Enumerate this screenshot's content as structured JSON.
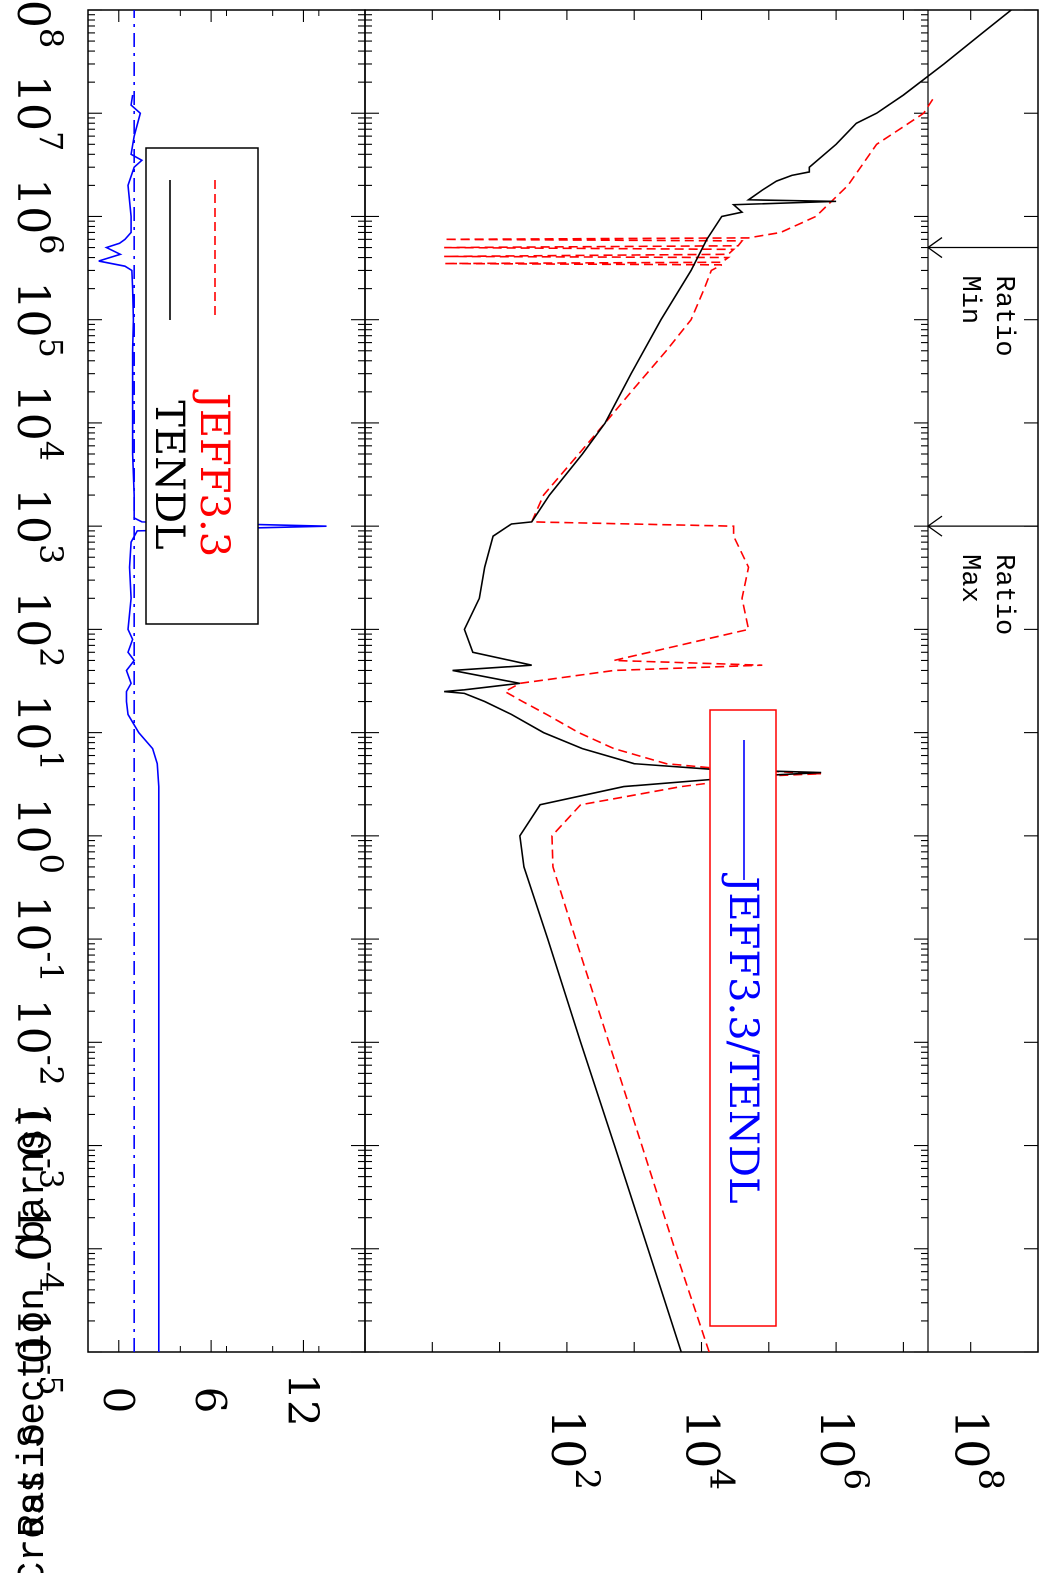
{
  "chart_data": [
    {
      "type": "line",
      "title": "",
      "xlabel": "",
      "ylabel": "Cross Section (barns)",
      "x_scale": "log",
      "y_scale": "log",
      "xlim": [
        1e-05,
        100000000.0
      ],
      "ylim": [
        0.1,
        1000000000.0
      ],
      "x_tick_labels": [
        "10^-5",
        "10^-4",
        "10^-3",
        "10^-2",
        "10^-1",
        "10^0",
        "10^1",
        "10^2",
        "10^3",
        "10^4",
        "10^5",
        "10^6",
        "10^7",
        "10^8"
      ],
      "x_tick_values": [
        1e-05,
        0.0001,
        0.001,
        0.01,
        0.1,
        1,
        10,
        100,
        1000,
        10000.0,
        100000.0,
        1000000.0,
        10000000.0,
        100000000.0
      ],
      "y_tick_labels": [
        "10^2",
        "10^4",
        "10^6",
        "10^8"
      ],
      "y_tick_values": [
        100,
        10000.0,
        1000000.0,
        100000000.0
      ],
      "legend": {
        "placement": "top-left",
        "entries": [
          {
            "label": "TENDL",
            "color": "#000000",
            "style": "solid"
          },
          {
            "label": "JEFF3.3",
            "color": "#ff0000",
            "style": "dashed"
          }
        ]
      },
      "annotations": [
        {
          "label_lines": [
            "Max",
            "Ratio"
          ],
          "x": 1000
        },
        {
          "label_lines": [
            "Min",
            "Ratio"
          ],
          "x": 500000
        }
      ],
      "series": [
        {
          "name": "TENDL",
          "color": "#000000",
          "style": "solid",
          "x": [
            1e-05,
            0.0001,
            0.001,
            0.01,
            0.1,
            0.5,
            1.0,
            2.0,
            3.0,
            3.8,
            4.1,
            4.4,
            5.0,
            7.0,
            10,
            15,
            20,
            24,
            25,
            26,
            30,
            40,
            45,
            60,
            100,
            200,
            400,
            800,
            1050,
            1100,
            2000,
            5000,
            10000.0,
            30000.0,
            100000.0,
            300000.0,
            600000.0,
            1000000.0,
            1100000.0,
            1300000.0,
            1400000.0,
            1450000.0,
            1800000.0,
            2200000.0,
            2500000.0,
            2700000.0,
            3000000.0,
            5000000.0,
            8000000.0,
            10000000.0,
            15000000.0,
            30000000.0,
            60000000.0,
            100000000.0
          ],
          "y": [
            5000,
            1600,
            510,
            160,
            52,
            23,
            20,
            40,
            700,
            60000.0,
            600000.0,
            15000.0,
            1000,
            170,
            45,
            15,
            6,
            3,
            1.5,
            3,
            20,
            2,
            30,
            4,
            3,
            5,
            6,
            8,
            15,
            30,
            55,
            170,
            370,
            900,
            2500,
            7000,
            12000.0,
            20000.0,
            40000.0,
            30000.0,
            1000000.0,
            50000.0,
            80000.0,
            130000.0,
            220000.0,
            400000.0,
            400000.0,
            1000000.0,
            2000000.0,
            4000000.0,
            10000000.0,
            40000000.0,
            150000000.0,
            400000000.0
          ]
        },
        {
          "name": "JEFF3.3",
          "color": "#ff0000",
          "style": "dashed",
          "x": [
            1e-05,
            0.0001,
            0.001,
            0.01,
            0.1,
            0.5,
            1.0,
            2.0,
            3.0,
            3.8,
            4.0,
            4.4,
            5.0,
            7.0,
            10,
            15,
            20,
            25,
            30,
            40,
            45,
            50,
            100,
            200,
            400,
            800,
            1000,
            1100,
            2000,
            5000,
            10000.0,
            20000.0,
            50000.0,
            100000.0,
            200000.0,
            300000.0,
            340000.0,
            350000.0,
            360000.0,
            400000.0,
            410000.0,
            430000.0,
            480000.0,
            500000.0,
            520000.0,
            580000.0,
            600000.0,
            620000.0,
            700000.0,
            1000000.0,
            2000000.0,
            5000000.0,
            8000000.0,
            10000000.0,
            15000000.0
          ],
          "y": [
            13000.0,
            4000,
            1300,
            420,
            135,
            62,
            60,
            160,
            5000,
            90000.0,
            600000.0,
            25000.0,
            3000,
            500,
            150,
            50,
            22,
            12,
            20,
            500,
            80000.0,
            500,
            50000.0,
            40000.0,
            50000.0,
            30000.0,
            30000.0,
            30,
            45,
            150,
            370,
            900,
            3000,
            7000,
            11000.0,
            14000.0,
            20000.0,
            1.5,
            20000.0,
            25000.0,
            1.5,
            25000.0,
            30000.0,
            1.5,
            35000.0,
            40000.0,
            1.5,
            50000.0,
            150000.0,
            500000.0,
            1500000.0,
            4000000.0,
            12000000.0,
            20000000.0,
            30000000.0
          ]
        }
      ]
    },
    {
      "type": "line",
      "title": "",
      "xlabel": "",
      "ylabel": "Ratio",
      "x_scale": "log",
      "xlim": [
        1e-05,
        100000000.0
      ],
      "ylim": [
        -2,
        16
      ],
      "y_tick_labels": [
        "0",
        "6",
        "12"
      ],
      "y_tick_values": [
        0,
        6,
        12
      ],
      "legend": {
        "placement": "top-left",
        "entries": [
          {
            "label": "JEFF3.3/TENDL",
            "color": "#0000ff",
            "style": "solid"
          }
        ]
      },
      "series": [
        {
          "name": "JEFF3.3/TENDL",
          "color": "#0000ff",
          "style": "solid",
          "x": [
            1e-05,
            0.0001,
            0.001,
            0.01,
            0.1,
            1,
            2,
            3,
            5,
            7,
            10,
            15,
            20,
            25,
            30,
            40,
            50,
            60,
            80,
            100,
            200,
            400,
            700,
            900,
            1000,
            1100,
            1200,
            2000,
            5000,
            10000.0,
            50000.0,
            100000.0,
            200000.0,
            300000.0,
            330000.0,
            370000.0,
            430000.0,
            500000.0,
            550000.0,
            600000.0,
            700000.0,
            1000000.0,
            2000000.0,
            3000000.0,
            3500000.0,
            4000000.0,
            6000000.0,
            10000000.0,
            12000000.0,
            15000000.0
          ],
          "y": [
            2.6,
            2.6,
            2.6,
            2.6,
            2.6,
            2.6,
            2.6,
            2.6,
            2.5,
            2.2,
            1.3,
            0.6,
            0.5,
            0.5,
            0.8,
            0.5,
            1.0,
            0.6,
            0.9,
            0.6,
            0.8,
            0.7,
            0.8,
            1.2,
            13.5,
            1.5,
            1.0,
            1.0,
            0.9,
            0.9,
            0.9,
            0.95,
            0.9,
            0.85,
            0.4,
            -1.3,
            0.1,
            -0.8,
            0.05,
            0.4,
            0.8,
            0.8,
            0.6,
            1.0,
            1.5,
            0.8,
            1.0,
            1.4,
            0.8,
            0.9
          ]
        },
        {
          "name": "",
          "color": "#0000ff",
          "style": "dash-dot",
          "x": [
            1e-05,
            100000000.0
          ],
          "y": [
            1,
            1
          ]
        }
      ]
    }
  ]
}
